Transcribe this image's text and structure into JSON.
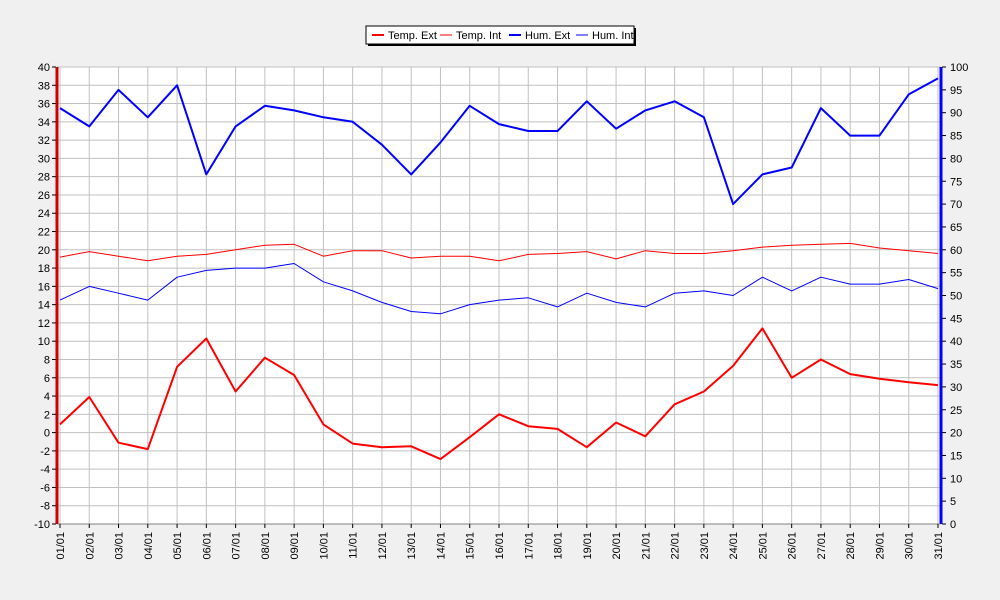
{
  "chart_data": {
    "type": "line",
    "categories": [
      "01/01",
      "02/01",
      "03/01",
      "04/01",
      "05/01",
      "06/01",
      "07/01",
      "08/01",
      "09/01",
      "10/01",
      "11/01",
      "12/01",
      "13/01",
      "14/01",
      "15/01",
      "16/01",
      "17/01",
      "18/01",
      "19/01",
      "20/01",
      "21/01",
      "22/01",
      "23/01",
      "24/01",
      "25/01",
      "26/01",
      "27/01",
      "28/01",
      "29/01",
      "30/01",
      "31/01"
    ],
    "series": [
      {
        "name": "Temp. Ext",
        "axis": "left",
        "color": "#ff0000",
        "width": 2,
        "values": [
          0.9,
          3.9,
          -1.1,
          -1.8,
          7.2,
          10.3,
          4.5,
          8.2,
          6.3,
          0.9,
          -1.2,
          -1.6,
          -1.5,
          -2.9,
          -0.5,
          2.0,
          0.7,
          0.4,
          -1.6,
          1.1,
          -0.4,
          3.1,
          4.5,
          7.3,
          11.4,
          6.0,
          8.0,
          6.4,
          5.9,
          5.5,
          5.2
        ]
      },
      {
        "name": "Temp. Int",
        "axis": "left",
        "color": "#ff0000",
        "width": 1,
        "values": [
          19.2,
          19.8,
          19.3,
          18.8,
          19.3,
          19.5,
          20.0,
          20.5,
          20.6,
          19.3,
          19.9,
          19.9,
          19.1,
          19.3,
          19.3,
          18.8,
          19.5,
          19.6,
          19.8,
          19.0,
          19.9,
          19.6,
          19.6,
          19.9,
          20.3,
          20.5,
          20.6,
          20.7,
          20.2,
          19.9,
          19.6
        ]
      },
      {
        "name": "Hum. Ext",
        "axis": "right",
        "color": "#0000ff",
        "width": 2,
        "values": [
          91,
          87,
          95,
          89,
          96,
          76.5,
          87,
          91.5,
          90.5,
          89,
          88,
          83,
          76.5,
          83.5,
          91.5,
          87.5,
          86,
          86,
          92.5,
          86.5,
          90.5,
          92.5,
          89,
          70,
          76.5,
          78,
          91,
          85,
          85,
          94,
          97.5
        ]
      },
      {
        "name": "Hum. Int",
        "axis": "right",
        "color": "#0000ff",
        "width": 1,
        "values": [
          49,
          52,
          50.5,
          49,
          54,
          55.5,
          56,
          56,
          57,
          53,
          51,
          48.5,
          46.5,
          46,
          48,
          49,
          49.5,
          47.5,
          50.5,
          48.5,
          47.5,
          50.5,
          51,
          50,
          54,
          51,
          54,
          52.5,
          52.5,
          53.5,
          51.5
        ]
      }
    ],
    "ylim_left": [
      -10,
      40
    ],
    "yticks_left": [
      "40",
      "38",
      "36",
      "34",
      "32",
      "30",
      "28",
      "26",
      "24",
      "22",
      "20",
      "18",
      "16",
      "14",
      "12",
      "10",
      "8",
      "6",
      "4",
      "2",
      "0",
      "-2",
      "-4",
      "-6",
      "-8",
      "-10"
    ],
    "ylim_right": [
      0,
      100
    ],
    "yticks_right": [
      "100",
      "95",
      "90",
      "85",
      "80",
      "75",
      "70",
      "65",
      "60",
      "55",
      "50",
      "45",
      "40",
      "35",
      "30",
      "25",
      "20",
      "15",
      "10",
      "5",
      "0"
    ],
    "grid": true,
    "legend_position": "top-center",
    "left_axis_color": "#cc0000",
    "right_axis_color": "#0000ff",
    "background": "#f0f0f0"
  }
}
